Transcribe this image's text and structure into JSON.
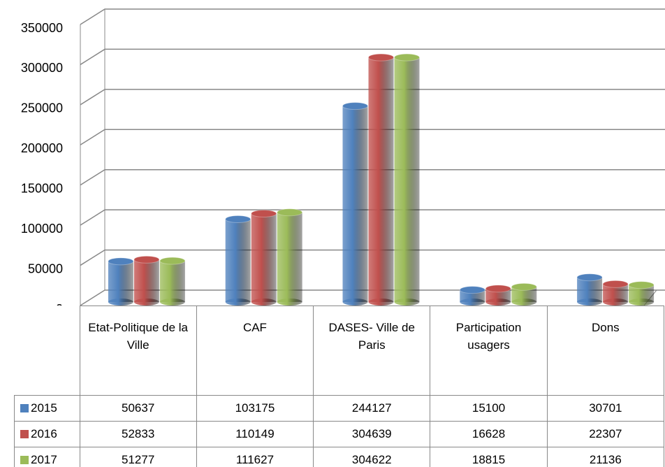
{
  "chart_data": {
    "type": "bar3d",
    "categories": [
      "Etat-Politique de la Ville",
      "CAF",
      "DASES- Ville de Paris",
      "Participation usagers",
      "Dons"
    ],
    "series": [
      {
        "name": "2015",
        "color": "#4f81bd",
        "values": [
          50637,
          103175,
          244127,
          15100,
          30701
        ]
      },
      {
        "name": "2016",
        "color": "#c0504d",
        "values": [
          52833,
          110149,
          304639,
          16628,
          22307
        ]
      },
      {
        "name": "2017",
        "color": "#9bbb59",
        "values": [
          51277,
          111627,
          304622,
          18815,
          21136
        ]
      }
    ],
    "ylim": [
      0,
      350000
    ],
    "yticks": [
      0,
      50000,
      100000,
      150000,
      200000,
      250000,
      300000,
      350000
    ],
    "grid": true,
    "legend": "table"
  }
}
